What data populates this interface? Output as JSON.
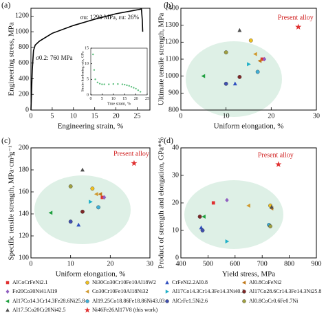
{
  "materials": [
    {
      "name": "AlCoCrFeNi2.1",
      "color": "#e03030",
      "marker": "square"
    },
    {
      "name": "Ni30Co30Cr10Fe10Al18W2",
      "color": "#f0c020",
      "marker": "circle"
    },
    {
      "name": "CrFeNi2.2Al0.8",
      "color": "#3050c0",
      "marker": "triangle"
    },
    {
      "name": "Al0.8CoFeNi2",
      "color": "#c07818",
      "marker": "triangle-left"
    },
    {
      "name": "Fe20Co30Ni41Al19",
      "color": "#9060c0",
      "marker": "diamond"
    },
    {
      "name": "Co30Cr10Fe10Al18Ni32",
      "color": "#d09a30",
      "marker": "triangle-left"
    },
    {
      "name": "Al17Co14.3Cr14.3Fe14.3Ni40.1",
      "color": "#20b0c8",
      "marker": "triangle-right"
    },
    {
      "name": "Al17Co28.6Cr14.3Fe14.3Ni25.8",
      "color": "#802828",
      "marker": "circle"
    },
    {
      "name": "Al17Co14.3Cr14.3Fe28.6Ni25.8",
      "color": "#20a040",
      "marker": "triangle-left"
    },
    {
      "name": "Al19.25Co18.86Fe18.86Ni43.03",
      "color": "#40b0d8",
      "marker": "circle"
    },
    {
      "name": "AlCrFe1.5Ni2.6",
      "color": "#4050b0",
      "marker": "circle"
    },
    {
      "name": "Al0.8CoCr0.6Fe0.7Ni",
      "color": "#a0a040",
      "marker": "circle"
    },
    {
      "name": "Al17.5Co20Cr20Ni42.5",
      "color": "#505050",
      "marker": "triangle"
    },
    {
      "name": "Ni46Fe26Al17V8 (this work)",
      "color": "#e03030",
      "marker": "star"
    }
  ],
  "chart_data": [
    {
      "type": "line",
      "panel": "(a)",
      "xlabel": "Engineering strain, %",
      "ylabel": "Engineering stress, MPa",
      "color": "#000000",
      "x": [
        0,
        0.3,
        0.6,
        1,
        2,
        5,
        10,
        15,
        20,
        24,
        26,
        26.2,
        26.3
      ],
      "y": [
        0,
        500,
        760,
        830,
        880,
        980,
        1080,
        1160,
        1230,
        1270,
        1290,
        1150,
        1000
      ],
      "xlim": [
        0,
        28
      ],
      "xticks": [
        0,
        5,
        10,
        15,
        20,
        25
      ],
      "ylim": [
        0,
        1300
      ],
      "yticks": [
        0,
        200,
        400,
        600,
        800,
        1000,
        1200
      ],
      "annotations": [
        "σu: 1290 MPa, εu: 26%",
        "σ0.2: 760 MPa"
      ],
      "inset": {
        "type": "scatter",
        "xlabel": "True strain, %",
        "ylabel": "Strain-hardening rate, GPa",
        "color": "#60c080",
        "x": [
          1,
          1.5,
          2,
          3,
          4,
          5,
          6,
          8,
          10,
          12,
          14,
          15,
          16,
          17,
          18,
          19,
          20,
          21,
          22
        ],
        "y": [
          13,
          8,
          5,
          4,
          3.6,
          3.4,
          3.4,
          3.4,
          3.5,
          3.5,
          3.4,
          3.3,
          3.1,
          2.9,
          2.6,
          2.3,
          2,
          1.5,
          1
        ],
        "xlim": [
          0,
          25
        ],
        "xticks": [
          0,
          5,
          10,
          15,
          20,
          25
        ],
        "ylim": [
          0,
          15
        ],
        "yticks": [
          0,
          5,
          10,
          15
        ]
      }
    },
    {
      "type": "scatter",
      "panel": "(b)",
      "xlabel": "Uniform elongation, %",
      "ylabel": "Ultimate tensile strength, MPa",
      "annotation": "Present alloy",
      "x": [
        18,
        15.5,
        12,
        17.5,
        18.5,
        16.5,
        15,
        13,
        5,
        17,
        10,
        10,
        13,
        26
      ],
      "y": [
        1100,
        1210,
        955,
        1090,
        1100,
        1130,
        1070,
        995,
        1000,
        1025,
        955,
        1140,
        1270,
        1290
      ],
      "xlim": [
        0,
        30
      ],
      "xticks": [
        0,
        10,
        20,
        30
      ],
      "ylim": [
        800,
        1400
      ],
      "yticks": [
        800,
        900,
        1000,
        1100,
        1200,
        1300,
        1400
      ]
    },
    {
      "type": "scatter",
      "panel": "(c)",
      "xlabel": "Uniform elongation, %",
      "ylabel": "Specific tensile strength, MPa·cm³g⁻¹",
      "annotation": "Present alloy",
      "x": [
        18,
        15.5,
        12,
        17.5,
        18.5,
        16.5,
        15,
        13,
        5,
        17,
        10,
        10,
        13,
        26
      ],
      "y": [
        155,
        163,
        130,
        158,
        155,
        158,
        151,
        142,
        141,
        146,
        133,
        165,
        180,
        186
      ],
      "xlim": [
        0,
        30
      ],
      "xticks": [
        0,
        10,
        20,
        30
      ],
      "ylim": [
        100,
        200
      ],
      "yticks": [
        100,
        120,
        140,
        160,
        180,
        200
      ]
    },
    {
      "type": "scatter",
      "panel": "(d)",
      "xlabel": "Yield stress, MPa",
      "ylabel": "Product of strength and elongation, GPa*%",
      "annotation": "Present alloy",
      "x": [
        520,
        730,
        475,
        735,
        570,
        650,
        570,
        470,
        485,
        725,
        480,
        730,
        735,
        760
      ],
      "y": [
        20,
        19,
        11,
        18,
        21,
        19,
        6,
        15,
        15,
        12,
        10,
        11.5,
        18.5,
        34
      ],
      "xlim": [
        400,
        900
      ],
      "xticks": [
        400,
        500,
        600,
        700,
        800,
        900
      ],
      "ylim": [
        0,
        40
      ],
      "yticks": [
        0,
        10,
        20,
        30,
        40
      ]
    }
  ]
}
